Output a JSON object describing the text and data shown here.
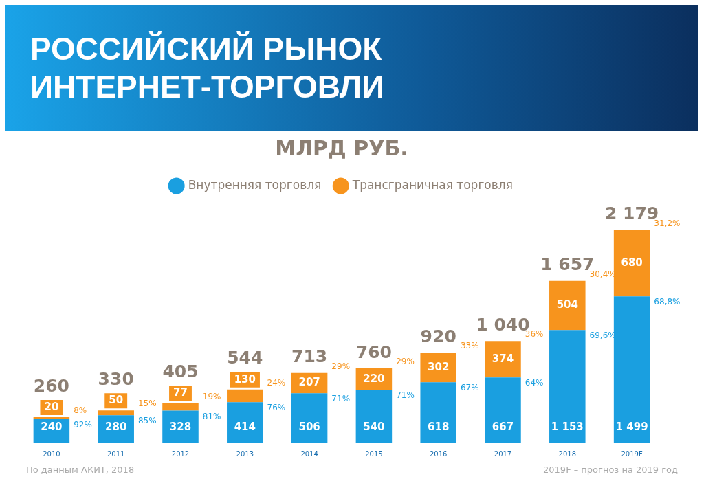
{
  "chart_data": {
    "type": "bar",
    "title": "РОССИЙСКИЙ РЫНОК ИНТЕРНЕТ-ТОРГОВЛИ",
    "subtitle": "МЛРД РУБ.",
    "stacked": true,
    "legend": "top",
    "grid": false,
    "data_labels": true,
    "categories": [
      "2010",
      "2011",
      "2012",
      "2013",
      "2014",
      "2015",
      "2016",
      "2017",
      "2018",
      "2019F"
    ],
    "series": [
      {
        "name": "Внутренняя торговля",
        "color": "#1a9fe0",
        "values": [
          240,
          280,
          328,
          414,
          506,
          540,
          618,
          667,
          1153,
          1499
        ],
        "value_labels": [
          "240",
          "280",
          "328",
          "414",
          "506",
          "540",
          "618",
          "667",
          "1 153",
          "1 499"
        ]
      },
      {
        "name": "Трансграничная торговля",
        "color": "#f7941d",
        "values": [
          20,
          50,
          77,
          130,
          207,
          220,
          302,
          374,
          504,
          680
        ]
      }
    ],
    "totals": [
      "260",
      "330",
      "405",
      "544",
      "713",
      "760",
      "920",
      "1 040",
      "1 657",
      "2 179"
    ],
    "annotations": [
      {
        "text": "92%",
        "x": "2010",
        "y": 240
      },
      {
        "text": "85%",
        "x": "2011",
        "y": 280
      },
      {
        "text": "81%",
        "x": "2012",
        "y": 328
      },
      {
        "text": "76%",
        "x": "2013",
        "y": 414
      },
      {
        "text": "71%",
        "x": "2014",
        "y": 506
      },
      {
        "text": "71%",
        "x": "2015",
        "y": 540
      },
      {
        "text": "67%",
        "x": "2016",
        "y": 618
      },
      {
        "text": "64%",
        "x": "2017",
        "y": 667
      },
      {
        "text": "69,6%",
        "x": "2018",
        "y": 1153
      },
      {
        "text": "68,8%",
        "x": "2019F",
        "y": 1499
      },
      {
        "text": "8%",
        "x": "2010",
        "y": 260
      },
      {
        "text": "15%",
        "x": "2011",
        "y": 330
      },
      {
        "text": "19%",
        "x": "2012",
        "y": 405
      },
      {
        "text": "24%",
        "x": "2013",
        "y": 544
      },
      {
        "text": "29%",
        "x": "2014",
        "y": 713
      },
      {
        "text": "29%",
        "x": "2015",
        "y": 760
      },
      {
        "text": "33%",
        "x": "2016",
        "y": 920
      },
      {
        "text": "36%",
        "x": "2017",
        "y": 1040
      },
      {
        "text": "30,4%",
        "x": "2018",
        "y": 1657
      },
      {
        "text": "31,2%",
        "x": "2019F",
        "y": 2179
      },
      "По данным АКИТ, 2018",
      "2019F – прогноз на 2019 год"
    ]
  }
}
